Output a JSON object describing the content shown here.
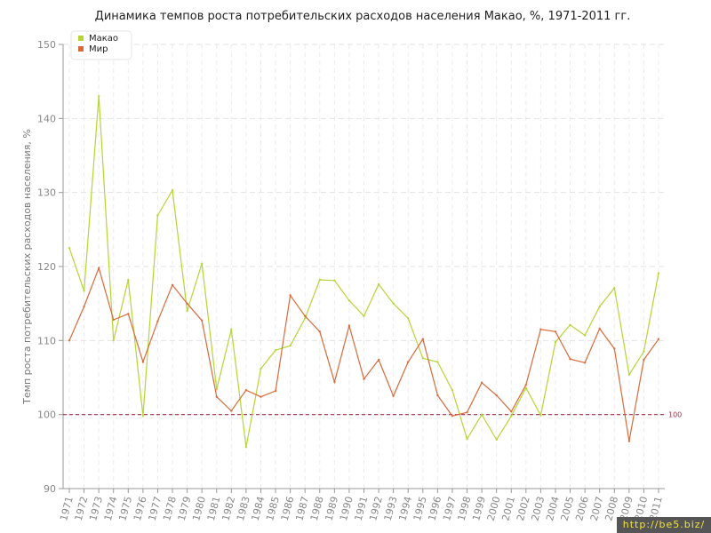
{
  "chart_data": {
    "type": "line",
    "title": "Динамика темпов роста потребительских расходов населения Макао, %, 1971-2011 гг.",
    "xlabel": "",
    "ylabel": "Темп роста потребительских расходов населения, %",
    "ylim": [
      90,
      150
    ],
    "yticks": [
      90,
      100,
      110,
      120,
      130,
      140,
      150
    ],
    "grid": true,
    "legend_position": "top-left",
    "reference_line": {
      "value": 100,
      "label": "100",
      "color": "#a0304a"
    },
    "categories": [
      "1971",
      "1972",
      "1973",
      "1974",
      "1975",
      "1976",
      "1977",
      "1978",
      "1979",
      "1980",
      "1981",
      "1982",
      "1983",
      "1984",
      "1985",
      "1986",
      "1987",
      "1988",
      "1989",
      "1990",
      "1991",
      "1992",
      "1993",
      "1994",
      "1995",
      "1996",
      "1997",
      "1998",
      "1999",
      "2000",
      "2001",
      "2002",
      "2003",
      "2004",
      "2005",
      "2006",
      "2007",
      "2008",
      "2009",
      "2010",
      "2011"
    ],
    "series": [
      {
        "name": "Макао",
        "color": "#b5d534",
        "values": [
          122.5,
          116.7,
          143.0,
          110.0,
          118.2,
          99.8,
          126.9,
          130.3,
          114.0,
          120.4,
          103.4,
          111.5,
          95.6,
          106.2,
          108.7,
          109.3,
          113.0,
          118.2,
          118.1,
          115.4,
          113.3,
          117.6,
          115.0,
          113.0,
          107.6,
          107.1,
          103.3,
          96.7,
          100.0,
          96.6,
          99.8,
          103.6,
          99.9,
          109.8,
          112.1,
          110.7,
          114.6,
          117.1,
          105.4,
          108.5,
          119.1
        ]
      },
      {
        "name": "Мир",
        "color": "#d9693a",
        "values": [
          110.0,
          114.6,
          119.8,
          112.8,
          113.6,
          107.1,
          112.6,
          117.5,
          115.0,
          112.7,
          102.4,
          100.5,
          103.3,
          102.4,
          103.2,
          116.1,
          113.3,
          111.2,
          104.4,
          112.0,
          104.8,
          107.4,
          102.5,
          107.1,
          110.2,
          102.6,
          99.8,
          100.3,
          104.3,
          102.6,
          100.4,
          104.0,
          111.5,
          111.2,
          107.5,
          107.0,
          111.6,
          108.9,
          96.4,
          107.4,
          110.2
        ]
      }
    ]
  },
  "watermark": "http://be5.biz/"
}
